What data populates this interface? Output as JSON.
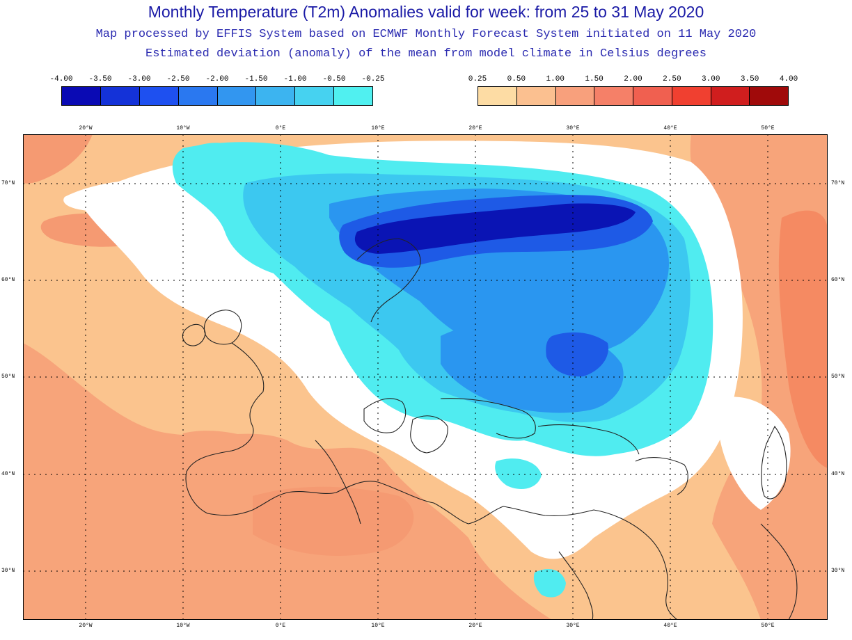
{
  "title": "Monthly Temperature (T2m) Anomalies valid for week: from 25 to 31 May 2020",
  "subtitle_1": "Map processed by EFFIS System based on ECMWF Monthly Forecast System initiated on 11 May 2020",
  "subtitle_2": "Estimated deviation (anomaly) of the mean from model climate in Celsius degrees",
  "legend_negative": {
    "labels": [
      "-4.00",
      "-3.50",
      "-3.00",
      "-2.50",
      "-2.00",
      "-1.50",
      "-1.00",
      "-0.50",
      "-0.25"
    ],
    "colors": [
      "#0a0ab4",
      "#1432d8",
      "#1e50f0",
      "#2a78f0",
      "#3296f0",
      "#3cb4f0",
      "#46d2f0",
      "#50f0f0"
    ]
  },
  "legend_positive": {
    "labels": [
      "0.25",
      "0.50",
      "1.00",
      "1.50",
      "2.00",
      "2.50",
      "3.00",
      "3.50",
      "4.00"
    ],
    "colors": [
      "#fddca4",
      "#fbc090",
      "#f8a07c",
      "#f58068",
      "#f06050",
      "#f04030",
      "#d01e1e",
      "#a00a0a"
    ]
  },
  "map": {
    "longitude_labels": [
      "20°W",
      "10°W",
      "0°E",
      "10°E",
      "20°E",
      "30°E",
      "40°E",
      "50°E"
    ],
    "latitude_labels": [
      "70°N",
      "60°N",
      "50°N",
      "40°N",
      "30°N"
    ],
    "colors": {
      "ocean_warm": "#fbc48e",
      "land_warm": "#f7a47a",
      "neutral": "#ffffff",
      "cold_light": "#50ecf0",
      "cold_mid": "#3cc8f0",
      "cold_deep": "#2a96f0",
      "cold_core": "#1e5ae6",
      "cold_extreme": "#0a14b4",
      "coast": "#222222"
    }
  }
}
